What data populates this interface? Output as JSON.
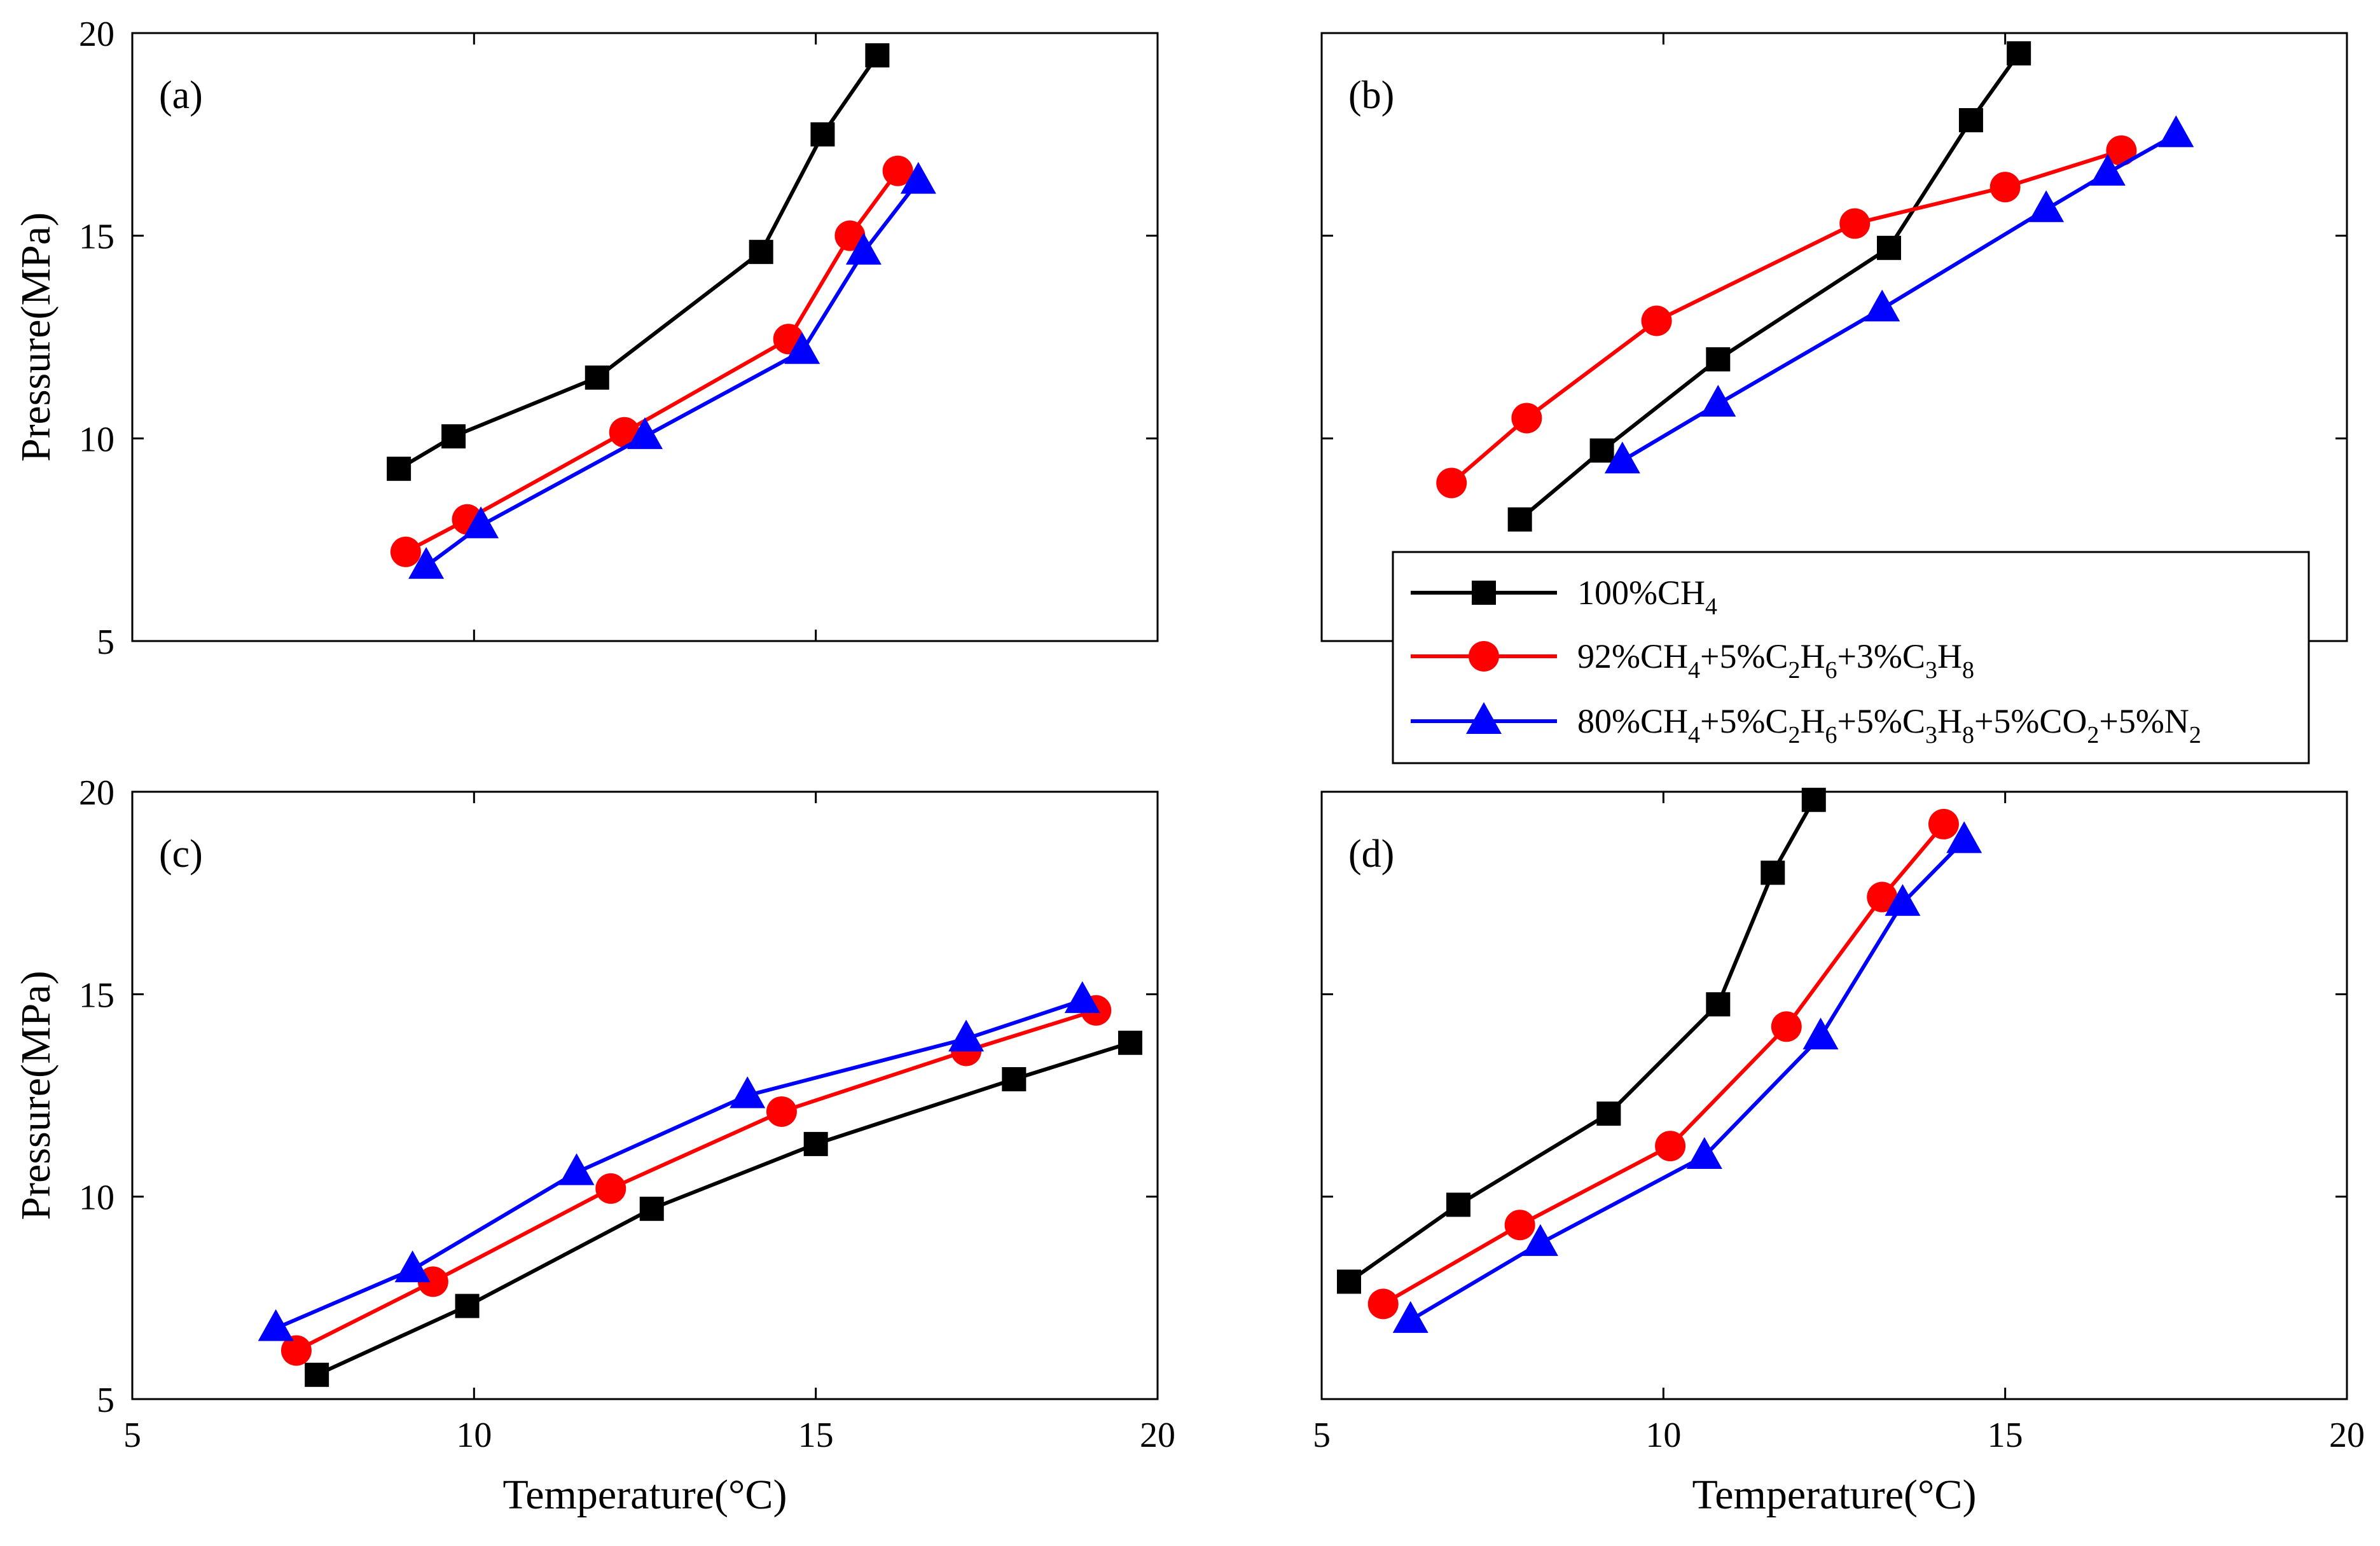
{
  "chart_data": {
    "type": "line",
    "layout": "2x2 grid of panels with a shared legend",
    "xlim": [
      5,
      20
    ],
    "ylim": [
      5,
      20
    ],
    "xticks": [
      5,
      10,
      15,
      20
    ],
    "yticks": [
      5,
      10,
      15,
      20
    ],
    "xlabel": "Temperature(°C)",
    "ylabel": "Pressure(MPa)",
    "legend": {
      "placement": "between upper-right and lower-right panels",
      "entries": [
        {
          "key": "s1",
          "marker": "square",
          "color": "#000000",
          "parts": [
            [
              "100%CH",
              "n"
            ],
            [
              "4",
              "s"
            ]
          ]
        },
        {
          "key": "s2",
          "marker": "circle",
          "color": "#ff0000",
          "parts": [
            [
              "92%CH",
              "n"
            ],
            [
              "4",
              "s"
            ],
            [
              "+5%C",
              "n"
            ],
            [
              "2",
              "s"
            ],
            [
              "H",
              "n"
            ],
            [
              "6",
              "s"
            ],
            [
              "+3%C",
              "n"
            ],
            [
              "3",
              "s"
            ],
            [
              "H",
              "n"
            ],
            [
              "8",
              "s"
            ]
          ]
        },
        {
          "key": "s3",
          "marker": "triangle",
          "color": "#0000ff",
          "parts": [
            [
              "80%CH",
              "n"
            ],
            [
              "4",
              "s"
            ],
            [
              "+5%C",
              "n"
            ],
            [
              "2",
              "s"
            ],
            [
              "H",
              "n"
            ],
            [
              "6",
              "s"
            ],
            [
              "+5%C",
              "n"
            ],
            [
              "3",
              "s"
            ],
            [
              "H",
              "n"
            ],
            [
              "8",
              "s"
            ],
            [
              "+5%CO",
              "n"
            ],
            [
              "2",
              "s"
            ],
            [
              "+5%N",
              "n"
            ],
            [
              "2",
              "s"
            ]
          ]
        }
      ]
    },
    "panels": [
      {
        "label": "(a)",
        "show_xticklabels": false,
        "show_yticklabels": true,
        "show_xlabel": false,
        "show_ylabel": true,
        "series": [
          {
            "key": "s1",
            "x": [
              8.9,
              9.7,
              11.8,
              14.2,
              15.1,
              15.9
            ],
            "y": [
              9.25,
              10.05,
              11.5,
              14.6,
              17.5,
              19.45
            ]
          },
          {
            "key": "s2",
            "x": [
              9.0,
              9.9,
              12.2,
              14.6,
              15.5,
              16.2
            ],
            "y": [
              7.2,
              8.0,
              10.15,
              12.45,
              15.0,
              16.6
            ]
          },
          {
            "key": "s3",
            "x": [
              9.3,
              10.1,
              12.5,
              14.8,
              15.7,
              16.5
            ],
            "y": [
              6.85,
              7.85,
              10.05,
              12.15,
              14.6,
              16.35
            ]
          }
        ]
      },
      {
        "label": "(b)",
        "show_xticklabels": false,
        "show_yticklabels": false,
        "show_xlabel": false,
        "show_ylabel": false,
        "series": [
          {
            "key": "s1",
            "x": [
              7.9,
              9.1,
              10.8,
              13.3,
              14.5,
              15.2
            ],
            "y": [
              8.0,
              9.7,
              11.95,
              14.7,
              17.85,
              19.5
            ]
          },
          {
            "key": "s2",
            "x": [
              6.9,
              8.0,
              9.9,
              12.8,
              15.0,
              16.7
            ],
            "y": [
              8.9,
              10.5,
              12.9,
              15.3,
              16.2,
              17.1
            ]
          },
          {
            "key": "s3",
            "x": [
              9.4,
              10.8,
              13.2,
              15.6,
              16.5,
              17.5
            ],
            "y": [
              9.45,
              10.85,
              13.2,
              15.65,
              16.55,
              17.5
            ]
          }
        ]
      },
      {
        "label": "(c)",
        "show_xticklabels": true,
        "show_yticklabels": true,
        "show_xlabel": true,
        "show_ylabel": true,
        "series": [
          {
            "key": "s1",
            "x": [
              7.7,
              9.9,
              12.6,
              15.0,
              17.9,
              19.6
            ],
            "y": [
              5.6,
              7.3,
              9.7,
              11.3,
              12.9,
              13.8
            ]
          },
          {
            "key": "s2",
            "x": [
              7.4,
              9.4,
              12.0,
              14.5,
              17.2,
              19.1
            ],
            "y": [
              6.2,
              7.9,
              10.2,
              12.1,
              13.6,
              14.6
            ]
          },
          {
            "key": "s3",
            "x": [
              7.1,
              9.1,
              11.5,
              14.0,
              17.2,
              18.9
            ],
            "y": [
              6.75,
              8.2,
              10.6,
              12.5,
              13.9,
              14.85
            ]
          }
        ]
      },
      {
        "label": "(d)",
        "show_xticklabels": true,
        "show_yticklabels": false,
        "show_xlabel": true,
        "show_ylabel": false,
        "series": [
          {
            "key": "s1",
            "x": [
              5.4,
              7.0,
              9.2,
              10.8,
              11.6,
              12.2
            ],
            "y": [
              7.9,
              9.8,
              12.05,
              14.75,
              18.0,
              19.8
            ]
          },
          {
            "key": "s2",
            "x": [
              5.9,
              7.9,
              10.1,
              11.8,
              13.2,
              14.1
            ],
            "y": [
              7.35,
              9.3,
              11.25,
              14.2,
              17.4,
              19.2
            ]
          },
          {
            "key": "s3",
            "x": [
              6.3,
              8.2,
              10.6,
              12.3,
              13.5,
              14.4
            ],
            "y": [
              6.95,
              8.85,
              11.0,
              13.95,
              17.25,
              18.8
            ]
          }
        ]
      }
    ]
  }
}
